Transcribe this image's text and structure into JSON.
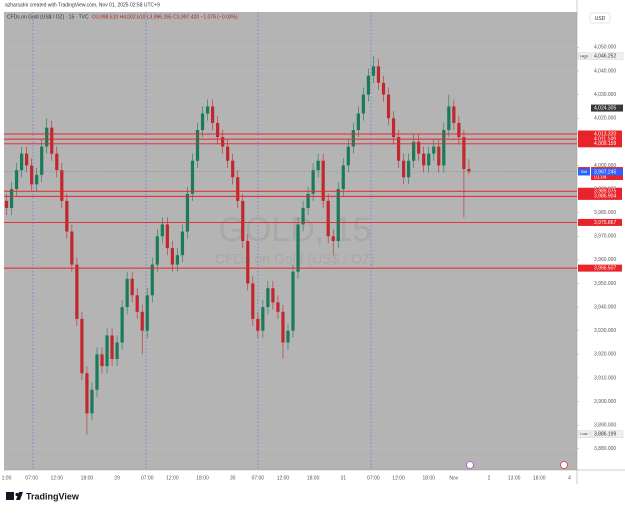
{
  "header": {
    "credit": "azharsahir created with TradingView.com, Nov 01, 2025 02:58 UTC+9",
    "legend": "CFDs on Gold (US$ / OZ) · 15 · TVC",
    "ohlc": "O3,998.510 H4,002.610 L3,996.265 C3,997.420 −1.078 (−0.03%)"
  },
  "watermark": {
    "symbol": "GOLD, 15",
    "description": "CFDs on Gold (US$ / OZ)"
  },
  "currency": "USD",
  "brand": "TradingView",
  "chart_data": {
    "type": "candlestick",
    "categories": [
      "1:00",
      null,
      null,
      null,
      null,
      "07:00",
      null,
      null,
      null,
      null,
      "12:00",
      null,
      null,
      null,
      null,
      null,
      "18:00",
      null,
      null,
      null,
      null,
      null,
      "29",
      null,
      null,
      null,
      null,
      null,
      "07:00",
      null,
      null,
      null,
      null,
      "12:00",
      null,
      null,
      null,
      null,
      null,
      "18:00",
      null,
      null,
      null,
      null,
      null,
      "30",
      null,
      null,
      null,
      null,
      "07:00",
      null,
      null,
      null,
      null,
      "12:00",
      null,
      null,
      null,
      null,
      null,
      "18:00",
      null,
      null,
      null,
      null,
      null,
      "31",
      null,
      null,
      null,
      null,
      null,
      "07:00",
      null,
      null,
      null,
      null,
      "12:00",
      null,
      null,
      null,
      null,
      null,
      "18:00",
      null,
      null,
      null,
      null,
      "Nov",
      null,
      null,
      null,
      null,
      null,
      null,
      "2",
      null,
      null,
      null,
      null,
      "13:00",
      null,
      null,
      null,
      null,
      "18:00",
      null,
      null,
      null,
      null,
      null,
      "4",
      null
    ],
    "open": [
      3985,
      3982,
      3990,
      3998,
      4005,
      4000,
      3992,
      3996,
      4008,
      4016,
      4005,
      3998,
      3985,
      3972,
      3958,
      3935,
      3912,
      3895,
      3905,
      3920,
      3915,
      3928,
      3918,
      3925,
      3940,
      3952,
      3945,
      3938,
      3930,
      3945,
      3958,
      3970,
      3975,
      3965,
      3958,
      3962,
      3972,
      3988,
      4002,
      4015,
      4022,
      4025,
      4018,
      4012,
      4008,
      4002,
      3995,
      3985,
      3968,
      3950,
      3935,
      3930,
      3940,
      3948,
      3942,
      3938,
      3925,
      3930,
      3955,
      3975,
      3982,
      3988,
      3998,
      4002,
      3985,
      3970,
      3968,
      3990,
      4000,
      4008,
      4015,
      4022,
      4030,
      4038,
      4042,
      4035,
      4030,
      4020,
      4012,
      4002,
      3995,
      4002,
      4010,
      4005,
      4000,
      4005,
      4008,
      4000,
      4015,
      4025,
      4018,
      4012,
      3998.51,
      null,
      null,
      null,
      null,
      null,
      null,
      null,
      null,
      null,
      null,
      null,
      null,
      null,
      null,
      null,
      null,
      null,
      null,
      null,
      null,
      null
    ],
    "high": [
      3988,
      3993,
      4001,
      4008,
      4008,
      4003,
      3999,
      4011,
      4020,
      4019,
      4008,
      4001,
      3988,
      3975,
      3961,
      3938,
      3915,
      3908,
      3923,
      3923,
      3931,
      3931,
      3928,
      3943,
      3955,
      3955,
      3948,
      3941,
      3948,
      3961,
      3973,
      3978,
      3978,
      3968,
      3965,
      3975,
      3991,
      4005,
      4018,
      4025,
      4028,
      4028,
      4021,
      4015,
      4011,
      4005,
      3998,
      3988,
      3971,
      3953,
      3938,
      3943,
      3951,
      3951,
      3945,
      3941,
      3933,
      3958,
      3978,
      3985,
      3991,
      4001,
      4005,
      4005,
      3988,
      3973,
      3993,
      4003,
      4011,
      4018,
      4025,
      4033,
      4041,
      4046.252,
      4045,
      4038,
      4033,
      4023,
      4015,
      4005,
      4005,
      4013,
      4013,
      4008,
      4008,
      4011,
      4011,
      4018,
      4030,
      4028,
      4021,
      4015,
      4002.61,
      null,
      null,
      null,
      null,
      null,
      null,
      null,
      null,
      null,
      null,
      null,
      null,
      null,
      null,
      null,
      null,
      null,
      null,
      null,
      null,
      null
    ],
    "low": [
      3979,
      3979,
      3987,
      3995,
      3997,
      3989,
      3989,
      3993,
      4005,
      4002,
      3995,
      3982,
      3969,
      3955,
      3932,
      3909,
      3886,
      3892,
      3902,
      3912,
      3912,
      3915,
      3915,
      3922,
      3937,
      3942,
      3935,
      3920,
      3927,
      3942,
      3955,
      3967,
      3962,
      3955,
      3955,
      3959,
      3969,
      3985,
      3999,
      4012,
      4019,
      4015,
      4009,
      4005,
      3999,
      3992,
      3982,
      3965,
      3947,
      3932,
      3927,
      3927,
      3937,
      3939,
      3935,
      3918,
      3922,
      3927,
      3952,
      3972,
      3979,
      3985,
      3995,
      3982,
      3967,
      3962,
      3965,
      3987,
      3997,
      4005,
      4012,
      4019,
      4027,
      4035,
      4032,
      4027,
      4017,
      4009,
      3999,
      3992,
      3992,
      3999,
      4002,
      3997,
      3997,
      4002,
      3997,
      3997,
      4012,
      4015,
      4009,
      3978,
      3996.265,
      null,
      null,
      null,
      null,
      null,
      null,
      null,
      null,
      null,
      null,
      null,
      null,
      null,
      null,
      null,
      null,
      null,
      null,
      null,
      null,
      null
    ],
    "close": [
      3982,
      3990,
      3998,
      4005,
      4000,
      3992,
      3996,
      4008,
      4016,
      4005,
      3998,
      3985,
      3972,
      3958,
      3935,
      3912,
      3895,
      3905,
      3920,
      3915,
      3928,
      3918,
      3925,
      3940,
      3952,
      3945,
      3938,
      3930,
      3945,
      3958,
      3970,
      3975,
      3965,
      3958,
      3962,
      3972,
      3988,
      4002,
      4015,
      4022,
      4025,
      4018,
      4012,
      4008,
      4002,
      3995,
      3985,
      3968,
      3950,
      3935,
      3930,
      3940,
      3948,
      3942,
      3938,
      3925,
      3930,
      3955,
      3975,
      3982,
      3988,
      3998,
      4002,
      3985,
      3970,
      3968,
      3990,
      4000,
      4008,
      4015,
      4022,
      4030,
      4038,
      4042,
      4035,
      4030,
      4020,
      4012,
      4002,
      3995,
      4002,
      4010,
      4005,
      4000,
      4005,
      4008,
      4000,
      4015,
      4025,
      4018,
      4012,
      3998.51,
      3997.42,
      null,
      null,
      null,
      null,
      null,
      null,
      null,
      null,
      null,
      null,
      null,
      null,
      null,
      null,
      null,
      null,
      null,
      null,
      null,
      null,
      null
    ],
    "up_color": "#1b7a5a",
    "down_color": "#c0282d",
    "ylim": [
      3871,
      4065
    ],
    "yticks": [
      {
        "value": 3880,
        "label": "3,880.000"
      },
      {
        "value": 3890,
        "label": "3,890.000"
      },
      {
        "value": 3900,
        "label": "3,900.000"
      },
      {
        "value": 3910,
        "label": "3,910.000"
      },
      {
        "value": 3920,
        "label": "3,920.000"
      },
      {
        "value": 3930,
        "label": "3,930.000"
      },
      {
        "value": 3940,
        "label": "3,940.000"
      },
      {
        "value": 3950,
        "label": "3,950.000"
      },
      {
        "value": 3960,
        "label": "3,960.000"
      },
      {
        "value": 3970,
        "label": "3,970.000"
      },
      {
        "value": 3980,
        "label": "3,980.000"
      },
      {
        "value": 3990,
        "label": "3,990.000"
      },
      {
        "value": 4000,
        "label": "4,000.000"
      },
      {
        "value": 4010,
        "label": "4,010.000"
      },
      {
        "value": 4020,
        "label": "4,020.000"
      },
      {
        "value": 4030,
        "label": "4,030.000"
      },
      {
        "value": 4040,
        "label": "4,040.000"
      },
      {
        "value": 4050,
        "label": "4,050.000"
      }
    ],
    "grid": true,
    "levels": [
      {
        "value": 4013.32,
        "label": "4,013.320"
      },
      {
        "value": 4011.149,
        "label": "4,011.149"
      },
      {
        "value": 4009.159,
        "label": "4,009.159"
      },
      {
        "value": 3989.075,
        "label": "3,989.075"
      },
      {
        "value": 3986.904,
        "label": "3,986.904"
      },
      {
        "value": 3975.867,
        "label": "3,975.867"
      },
      {
        "value": 3956.507,
        "label": "3,956.507"
      }
    ],
    "level_color": "#e8232a",
    "price_tags": [
      {
        "name": "High",
        "value": 4046.252,
        "label": "4,046.252",
        "color": "#f0f0f0"
      },
      {
        "value": 4024.305,
        "label": "4,024.305",
        "color": "#3a3a3a"
      },
      {
        "name": "Ask",
        "value": 3997.835,
        "label": "3,997.835",
        "color": "#e8232a"
      },
      {
        "name": "GOLD",
        "value": 3997.42,
        "label": "3,997.420",
        "countdown": "01:04",
        "color": "#e8232a"
      },
      {
        "name": "Bid",
        "value": 3997.245,
        "label": "3,997.245",
        "color": "#2962ff"
      },
      {
        "name": "Low",
        "value": 3886.199,
        "label": "3,886.199",
        "color": "#f0f0f0"
      }
    ]
  }
}
